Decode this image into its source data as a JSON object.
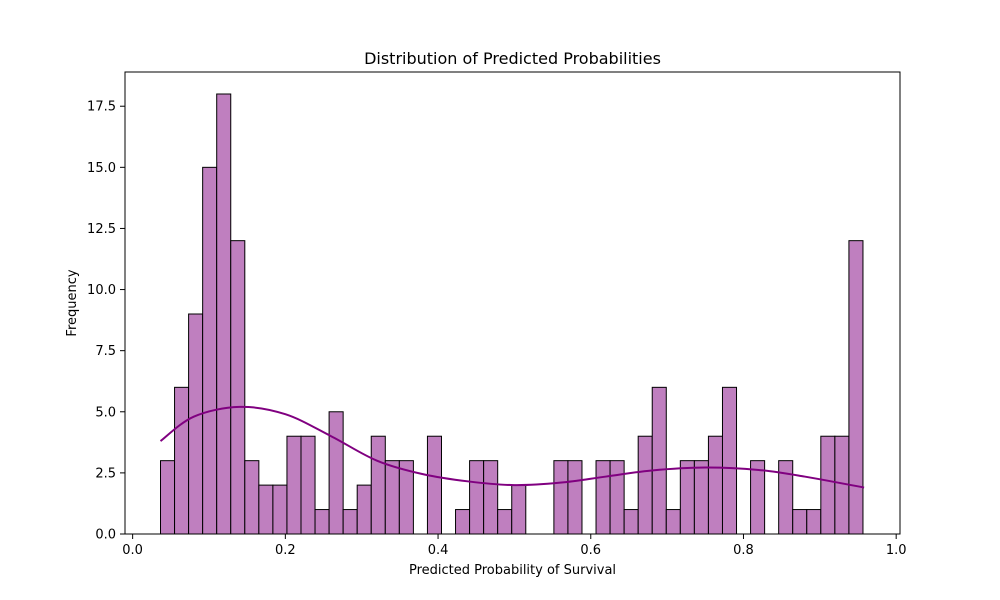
{
  "chart_data": {
    "type": "histogram",
    "title": "Distribution of Predicted Probabilities",
    "xlabel": "Predicted Probability of Survival",
    "ylabel": "Frequency",
    "xlim": [
      -0.01,
      1.005
    ],
    "ylim": [
      0,
      18.9
    ],
    "x_ticks": [
      0.0,
      0.2,
      0.4,
      0.6,
      0.8,
      1.0
    ],
    "x_tick_labels": [
      "0.0",
      "0.2",
      "0.4",
      "0.6",
      "0.8",
      "1.0"
    ],
    "y_ticks": [
      0,
      2.5,
      5,
      7.5,
      10,
      12.5,
      15,
      17.5
    ],
    "y_tick_labels": [
      "0.0",
      "2.5",
      "5.0",
      "7.5",
      "10.0",
      "12.5",
      "15.0",
      "17.5"
    ],
    "bin_start": 0.0365,
    "bin_width": 0.0184,
    "counts": [
      3,
      6,
      9,
      15,
      18,
      12,
      3,
      2,
      2,
      4,
      4,
      1,
      5,
      1,
      2,
      4,
      3,
      3,
      0,
      4,
      0,
      1,
      3,
      3,
      1,
      2,
      0,
      0,
      3,
      3,
      0,
      3,
      3,
      1,
      4,
      6,
      1,
      3,
      3,
      4,
      6,
      0,
      3,
      0,
      3,
      1,
      1,
      4,
      4,
      12
    ],
    "kde": {
      "x": [
        0.0365,
        0.08,
        0.14,
        0.2,
        0.26,
        0.32,
        0.38,
        0.44,
        0.5,
        0.56,
        0.62,
        0.68,
        0.75,
        0.82,
        0.88,
        0.958
      ],
      "y": [
        3.8,
        4.8,
        5.2,
        4.9,
        4.0,
        3.0,
        2.45,
        2.15,
        2.0,
        2.1,
        2.35,
        2.6,
        2.72,
        2.62,
        2.35,
        1.9
      ]
    },
    "bar_color": "#bf7fbf",
    "edge_color": "#000000",
    "kde_color": "#800080",
    "grid": false,
    "legend": false
  }
}
